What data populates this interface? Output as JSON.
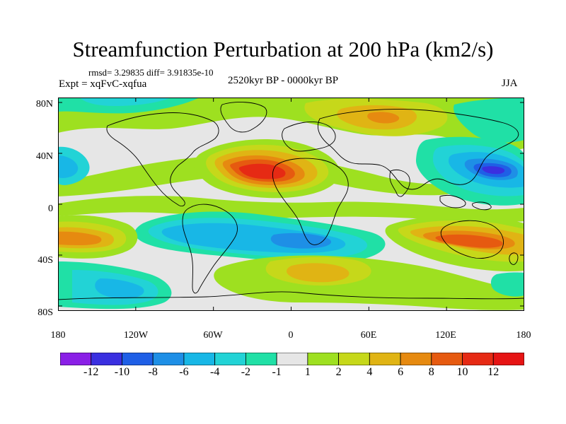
{
  "title": "Streamfunction Perturbation at 200 hPa (km2/s)",
  "stats": "rmsd= 3.29835  diff= 3.91835e-10",
  "experiment": "Expt = xqFvC-xqfua",
  "period": "2520kyr BP - 0000kyr BP",
  "season": "JJA",
  "lat_labels": [
    "80N",
    "40N",
    "0",
    "40S",
    "80S"
  ],
  "lon_labels": [
    "180",
    "120W",
    "60W",
    "0",
    "60E",
    "120E",
    "180"
  ],
  "colorbar": {
    "labels": [
      "-12",
      "-10",
      "-8",
      "-6",
      "-4",
      "-2",
      "-1",
      "1",
      "2",
      "4",
      "6",
      "8",
      "10",
      "12"
    ],
    "colors": [
      "#8a1fe6",
      "#3a2fe0",
      "#1f5fe6",
      "#1e8fe6",
      "#18b7e6",
      "#22d3d6",
      "#20e0a6",
      "#e6e6e6",
      "#9ee020",
      "#c6d81a",
      "#e0b414",
      "#e68a10",
      "#e65a10",
      "#e62a14",
      "#e61414"
    ]
  },
  "field_colors": {
    "neutral": "#e6e6e6",
    "pos1": "#9ee020",
    "pos2": "#c6d81a",
    "pos4": "#e0b414",
    "pos6": "#e68a10",
    "pos8": "#e65a10",
    "pos10": "#e62a14",
    "neg1": "#20e0a6",
    "neg2": "#22d3d6",
    "neg4": "#18b7e6",
    "neg6": "#1e8fe6",
    "neg8": "#1f5fe6",
    "neg10": "#3a2fe0"
  }
}
